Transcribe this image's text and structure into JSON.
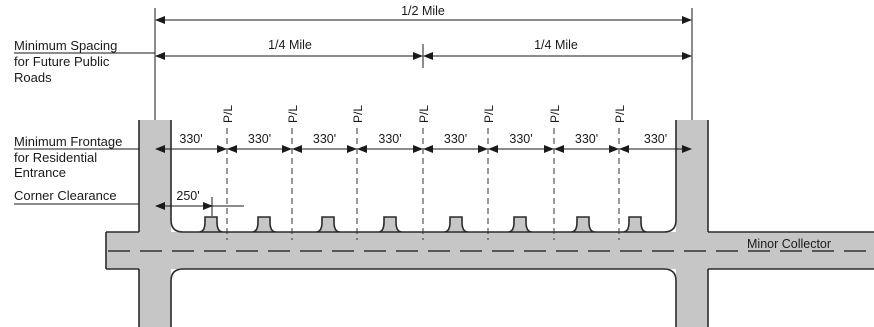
{
  "diagram": {
    "top_dimension": "1/2 Mile",
    "quarter_dimensions": [
      "1/4 Mile",
      "1/4 Mile"
    ],
    "labels": {
      "spacing": [
        "Minimum Spacing",
        "for Future Public",
        "Roads"
      ],
      "frontage": [
        "Minimum Frontage",
        "for Residential",
        "Entrance"
      ],
      "clearance": "Corner Clearance"
    },
    "frontage_dimensions": [
      "330'",
      "330'",
      "330'",
      "330'",
      "330'",
      "330'",
      "330'",
      "330'"
    ],
    "corner_clearance_value": "250'",
    "property_line_label": "P/L",
    "property_line_count": 7,
    "road_name": "Minor Collector"
  }
}
